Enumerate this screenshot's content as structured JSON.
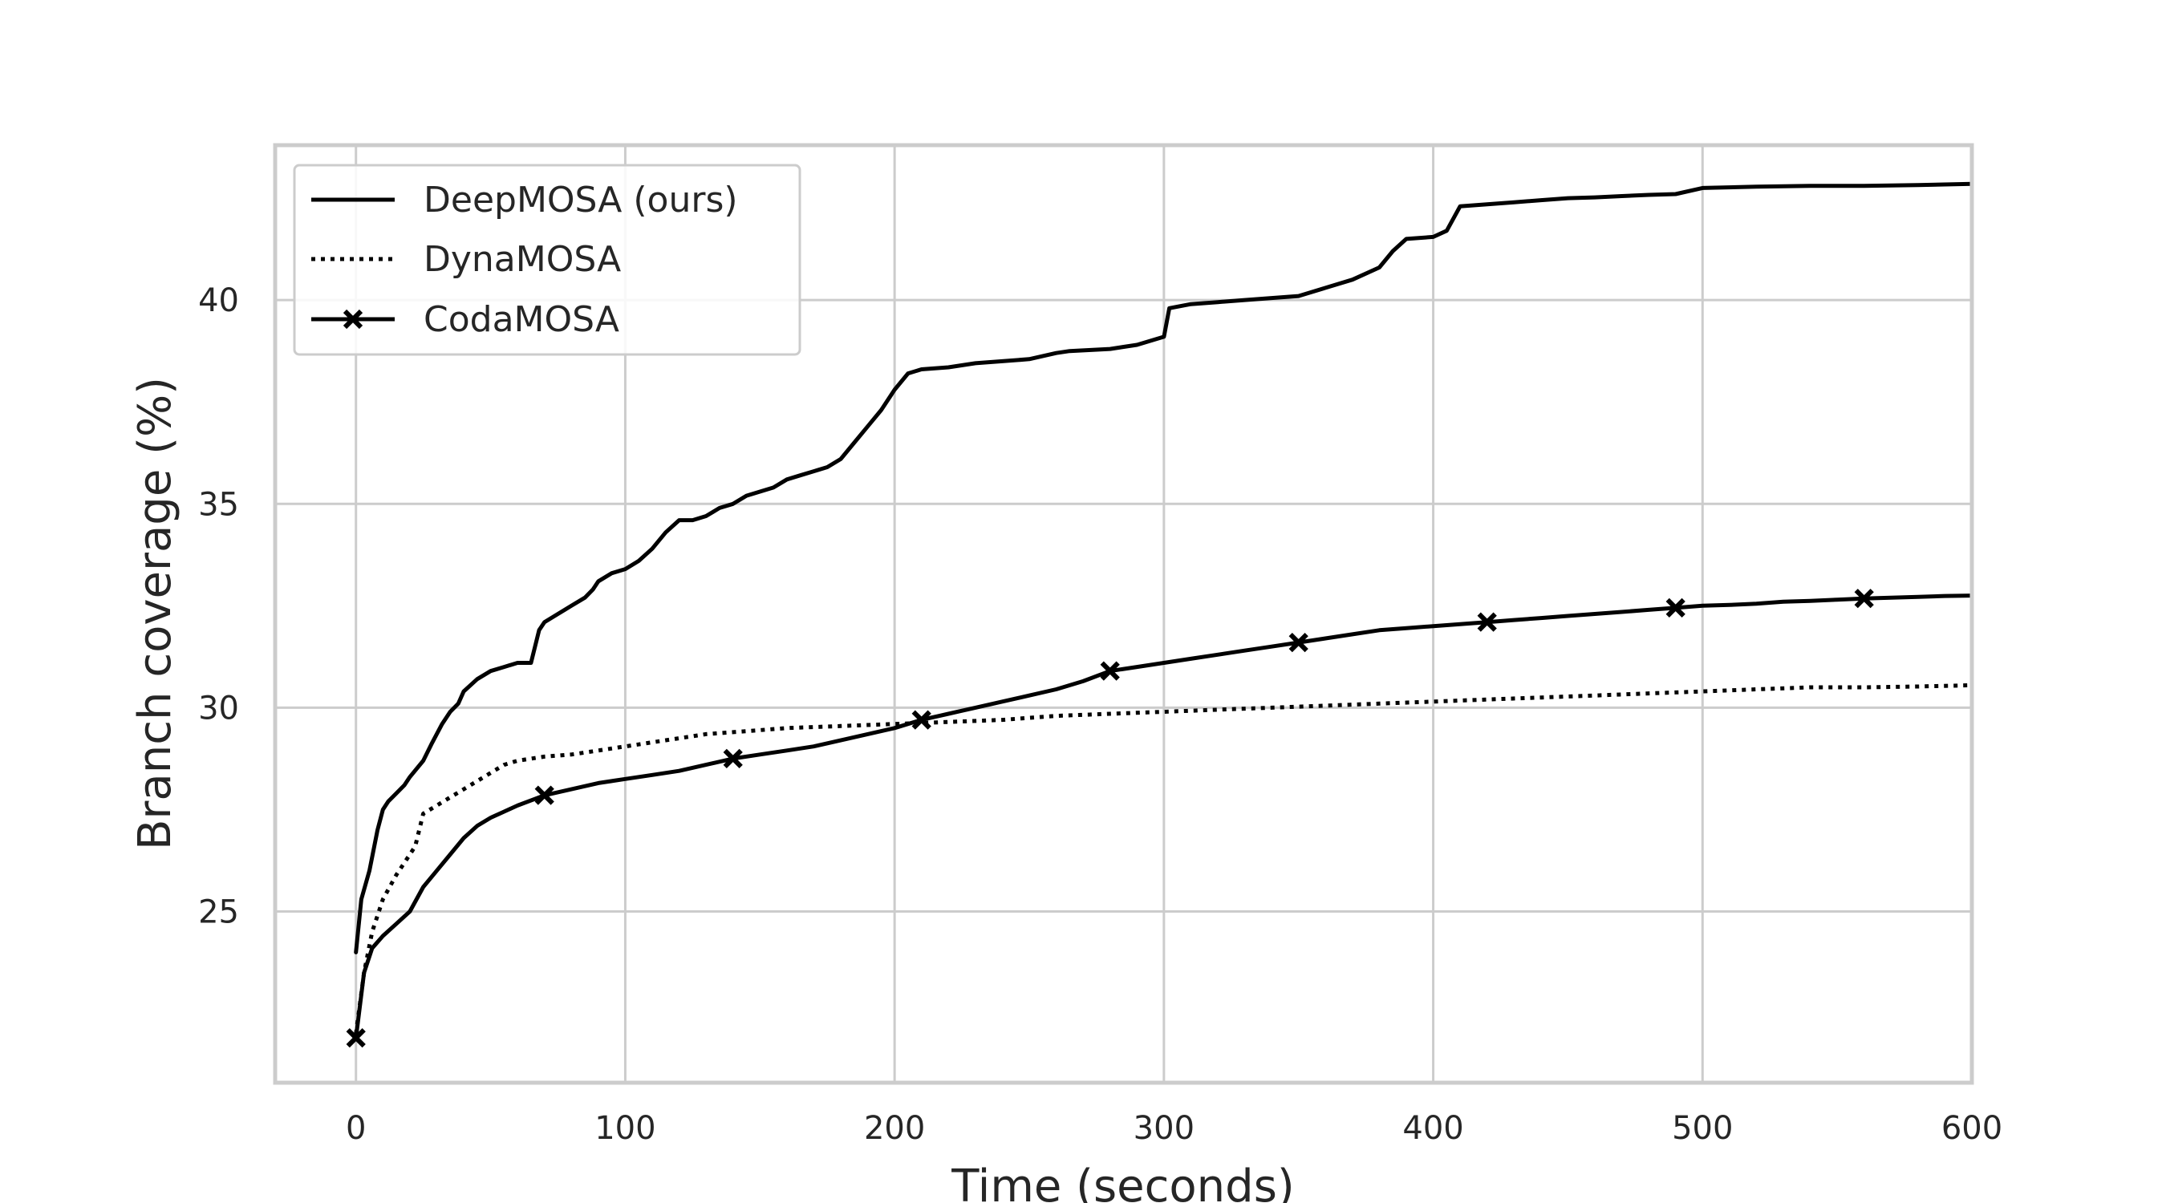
{
  "chart_data": {
    "type": "line",
    "title": "",
    "xlabel": "Time (seconds)",
    "ylabel": "Branch coverage (%)",
    "xlim": [
      -30,
      600
    ],
    "ylim": [
      20.8,
      43.8
    ],
    "xticks": [
      0,
      100,
      200,
      300,
      400,
      500,
      600
    ],
    "yticks": [
      25,
      30,
      35,
      40
    ],
    "grid": true,
    "legend_position": "top-left",
    "series": [
      {
        "name": "DeepMOSA (ours)",
        "style": "solid",
        "color": "#000000",
        "x": [
          0,
          2,
          5,
          8,
          10,
          12,
          15,
          18,
          20,
          25,
          28,
          32,
          35,
          38,
          40,
          45,
          50,
          55,
          60,
          65,
          68,
          70,
          75,
          80,
          85,
          88,
          90,
          95,
          100,
          105,
          110,
          115,
          120,
          125,
          130,
          135,
          140,
          145,
          150,
          155,
          160,
          165,
          170,
          175,
          180,
          185,
          190,
          195,
          200,
          205,
          210,
          220,
          230,
          240,
          250,
          260,
          265,
          280,
          290,
          300,
          302,
          310,
          320,
          330,
          340,
          350,
          360,
          370,
          380,
          385,
          390,
          400,
          405,
          410,
          420,
          430,
          440,
          450,
          460,
          470,
          480,
          490,
          500,
          520,
          540,
          560,
          580,
          600
        ],
        "y": [
          24.0,
          25.3,
          26.0,
          27.0,
          27.5,
          27.7,
          27.9,
          28.1,
          28.3,
          28.7,
          29.1,
          29.6,
          29.9,
          30.1,
          30.4,
          30.7,
          30.9,
          31.0,
          31.1,
          31.1,
          31.9,
          32.1,
          32.3,
          32.5,
          32.7,
          32.9,
          33.1,
          33.3,
          33.4,
          33.6,
          33.9,
          34.3,
          34.6,
          34.6,
          34.7,
          34.9,
          35.0,
          35.2,
          35.3,
          35.4,
          35.6,
          35.7,
          35.8,
          35.9,
          36.1,
          36.5,
          36.9,
          37.3,
          37.8,
          38.2,
          38.3,
          38.35,
          38.45,
          38.5,
          38.55,
          38.7,
          38.75,
          38.8,
          38.9,
          39.1,
          39.8,
          39.9,
          39.95,
          40.0,
          40.05,
          40.1,
          40.3,
          40.5,
          40.8,
          41.2,
          41.5,
          41.55,
          41.7,
          42.3,
          42.35,
          42.4,
          42.45,
          42.5,
          42.52,
          42.55,
          42.58,
          42.6,
          42.75,
          42.78,
          42.8,
          42.8,
          42.82,
          42.85
        ]
      },
      {
        "name": "DynaMOSA",
        "style": "dotted",
        "color": "#000000",
        "x": [
          0,
          3,
          6,
          10,
          15,
          20,
          22,
          25,
          30,
          35,
          40,
          45,
          50,
          55,
          60,
          70,
          80,
          90,
          100,
          110,
          120,
          130,
          140,
          150,
          160,
          180,
          200,
          220,
          240,
          260,
          280,
          300,
          320,
          340,
          360,
          380,
          400,
          420,
          440,
          460,
          480,
          500,
          520,
          540,
          560,
          580,
          600
        ],
        "y": [
          22.0,
          23.5,
          24.5,
          25.3,
          25.9,
          26.4,
          26.6,
          27.4,
          27.6,
          27.8,
          28.0,
          28.2,
          28.4,
          28.6,
          28.7,
          28.8,
          28.85,
          28.95,
          29.05,
          29.15,
          29.25,
          29.35,
          29.4,
          29.45,
          29.5,
          29.55,
          29.6,
          29.65,
          29.7,
          29.8,
          29.85,
          29.9,
          29.95,
          30.0,
          30.05,
          30.1,
          30.15,
          30.2,
          30.25,
          30.3,
          30.35,
          30.4,
          30.45,
          30.5,
          30.5,
          30.52,
          30.55
        ]
      },
      {
        "name": "CodaMOSA",
        "style": "solid-x",
        "color": "#000000",
        "x": [
          0,
          3,
          6,
          10,
          15,
          20,
          25,
          30,
          35,
          40,
          45,
          50,
          55,
          60,
          70,
          80,
          90,
          100,
          110,
          120,
          130,
          140,
          150,
          160,
          170,
          180,
          190,
          200,
          210,
          220,
          230,
          240,
          250,
          260,
          270,
          280,
          290,
          300,
          310,
          320,
          330,
          340,
          350,
          360,
          370,
          380,
          390,
          400,
          410,
          420,
          430,
          440,
          450,
          460,
          470,
          480,
          490,
          500,
          510,
          520,
          530,
          540,
          550,
          560,
          570,
          580,
          590,
          600
        ],
        "y": [
          21.9,
          23.5,
          24.1,
          24.4,
          24.7,
          25.0,
          25.6,
          26.0,
          26.4,
          26.8,
          27.1,
          27.3,
          27.45,
          27.6,
          27.85,
          28.0,
          28.15,
          28.25,
          28.35,
          28.45,
          28.6,
          28.75,
          28.85,
          28.95,
          29.05,
          29.2,
          29.35,
          29.5,
          29.7,
          29.85,
          30.0,
          30.15,
          30.3,
          30.45,
          30.65,
          30.9,
          31.0,
          31.1,
          31.2,
          31.3,
          31.4,
          31.5,
          31.6,
          31.7,
          31.8,
          31.9,
          31.95,
          32.0,
          32.05,
          32.1,
          32.15,
          32.2,
          32.25,
          32.3,
          32.35,
          32.4,
          32.45,
          32.5,
          32.52,
          32.55,
          32.6,
          32.62,
          32.65,
          32.68,
          32.7,
          32.72,
          32.74,
          32.75
        ],
        "markers_x": [
          0,
          70,
          140,
          210,
          280,
          350,
          420,
          490,
          560
        ],
        "markers_y": [
          21.9,
          27.85,
          28.75,
          29.7,
          30.9,
          31.6,
          32.1,
          32.45,
          32.68
        ]
      }
    ]
  }
}
